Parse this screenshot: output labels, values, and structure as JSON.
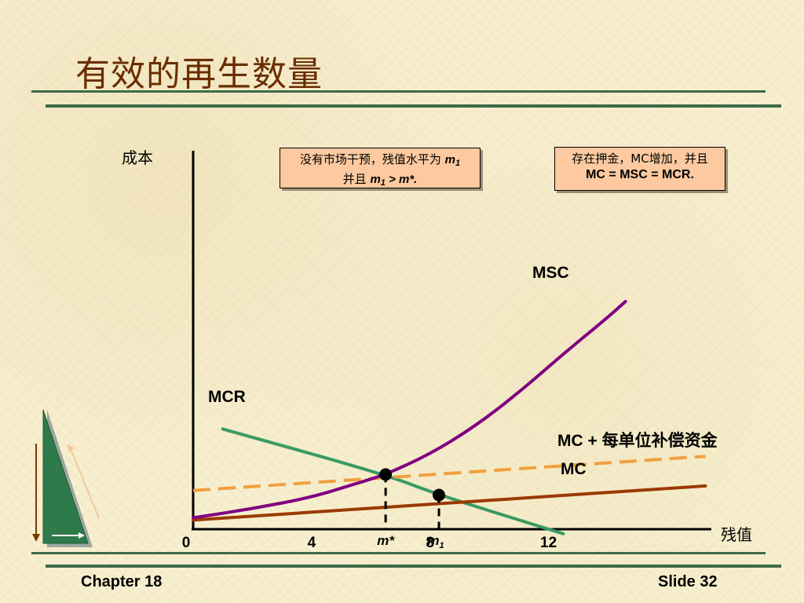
{
  "title": "有效的再生数量",
  "footer": {
    "left": "Chapter 18",
    "right": "Slide 32"
  },
  "notes": {
    "first": {
      "line1": "没有市场干预，残值水平为 ",
      "m": "m",
      "sub": "1",
      "line2a": "并且 ",
      "line2b": " > m*."
    },
    "second": {
      "line1": "存在押金，MC增加，并且",
      "line2": "MC = MSC = MCR."
    }
  },
  "chart_data": {
    "type": "line",
    "title": "有效的再生数量",
    "xlabel": "残值",
    "ylabel": "成本",
    "xlim": [
      0,
      17.5
    ],
    "ylim": [
      0,
      100
    ],
    "x_ticks": [
      {
        "value": 0,
        "label": "0"
      },
      {
        "value": 4,
        "label": "4"
      },
      {
        "value": 8,
        "label": "8"
      },
      {
        "value": 12,
        "label": "12"
      }
    ],
    "x_annotations": [
      {
        "value": 6.5,
        "label": "m*"
      },
      {
        "value": 8.3,
        "label": "m",
        "sub": "1"
      }
    ],
    "series": [
      {
        "name": "MSC",
        "color": "#800080",
        "style": "solid",
        "points": [
          [
            0,
            5
          ],
          [
            2,
            9
          ],
          [
            4,
            14
          ],
          [
            5.5,
            20
          ],
          [
            6.5,
            24
          ],
          [
            8,
            33
          ],
          [
            9.5,
            45
          ],
          [
            11,
            60
          ],
          [
            12.5,
            77
          ],
          [
            14,
            93
          ],
          [
            14.6,
            100
          ]
        ]
      },
      {
        "name": "MCR",
        "color": "#3a9a62",
        "style": "solid",
        "points": [
          [
            1,
            44
          ],
          [
            6.5,
            24
          ],
          [
            8.3,
            15
          ],
          [
            12.5,
            -2
          ]
        ]
      },
      {
        "name": "MC + 每单位补偿资金",
        "color": "#f0a040",
        "style": "dashed",
        "points": [
          [
            0,
            17
          ],
          [
            17.3,
            32
          ]
        ]
      },
      {
        "name": "MC",
        "color": "#9a3a00",
        "style": "solid",
        "points": [
          [
            0,
            4
          ],
          [
            17.3,
            19
          ]
        ]
      }
    ],
    "equilibrium_points": [
      {
        "label": "m*",
        "x": 6.5,
        "y": 24
      },
      {
        "label": "m1",
        "x": 8.3,
        "y": 15
      }
    ]
  }
}
